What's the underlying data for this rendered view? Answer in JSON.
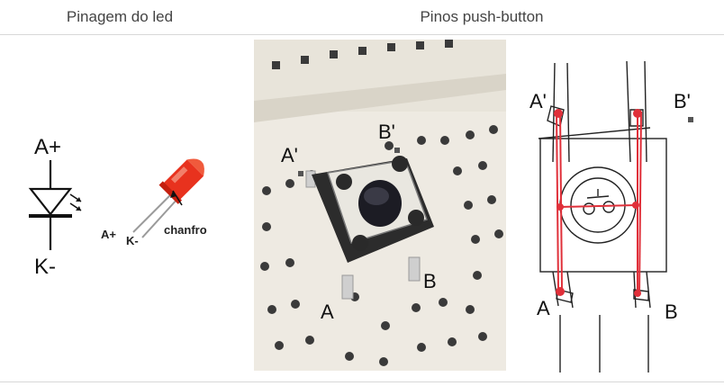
{
  "headers": {
    "left": "Pinagem do led",
    "right": "Pinos push-button"
  },
  "led_symbol": {
    "anode": "A+",
    "cathode": "K-"
  },
  "led_drawing": {
    "anode_pin": "A+",
    "cathode_pin": "K-",
    "flat": "chanfro"
  },
  "photo_labels": {
    "a_prime": "A'",
    "b_prime": "B'",
    "a": "A",
    "b": "B"
  },
  "sketch_labels": {
    "a_prime": "A'",
    "b_prime": "B'",
    "a": "A",
    "b": "B"
  },
  "colors": {
    "led_red": "#e8321e",
    "trace_red": "#e0303a",
    "breadboard": "#eeeae2"
  }
}
